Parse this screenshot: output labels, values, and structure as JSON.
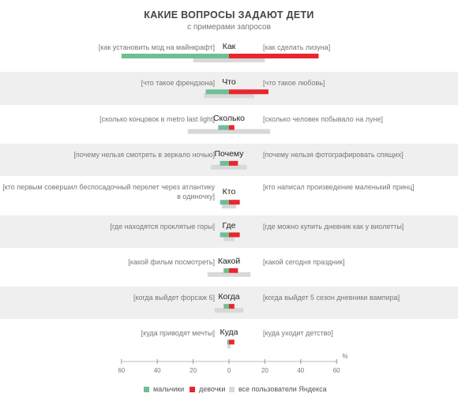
{
  "title": "КАКИЕ ВОПРОСЫ ЗАДАЮТ ДЕТИ",
  "subtitle": "с примерами запросов",
  "colors": {
    "boys": "#6dbf94",
    "girls": "#e8262e",
    "all": "#d8d8d8",
    "band": "#efefef"
  },
  "chart_data": {
    "type": "bar",
    "xlim": [
      -60,
      60
    ],
    "x_ticks": [
      "60",
      "40",
      "20",
      "0",
      "20",
      "40",
      "60"
    ],
    "x_unit": "%",
    "series": [
      {
        "name": "мальчики",
        "key": "boys"
      },
      {
        "name": "девочки",
        "key": "girls"
      },
      {
        "name": "все пользователи Яндекса",
        "key": "all"
      }
    ],
    "rows": [
      {
        "word": "Как",
        "boys": 60,
        "girls": 50,
        "all_left": 20,
        "all_right": 20,
        "boys_query": "[как установить мод на майнкрафт]",
        "girls_query": "[как сделать лизуна]"
      },
      {
        "word": "Что",
        "boys": 13,
        "girls": 22,
        "all_left": 14,
        "all_right": 14,
        "boys_query": "[что такое френдзона]",
        "girls_query": "[что такое любовь]"
      },
      {
        "word": "Сколько",
        "boys": 6,
        "girls": 3,
        "all_left": 23,
        "all_right": 23,
        "boys_query": "[сколько концовок в metro last light]",
        "girls_query": "[сколько человек побывало на луне]"
      },
      {
        "word": "Почему",
        "boys": 5,
        "girls": 5,
        "all_left": 10,
        "all_right": 10,
        "boys_query": "[почему нельзя смотреть в зеркало ночью]",
        "girls_query": "[почему нельзя фотографировать спящих]"
      },
      {
        "word": "Кто",
        "boys": 5,
        "girls": 6,
        "all_left": 4,
        "all_right": 4,
        "boys_query": "[кто первым совершил беспосадочный перелет через атлантику в одиночку]",
        "girls_query": "[кто написал произведение маленький принц]"
      },
      {
        "word": "Где",
        "boys": 5,
        "girls": 6,
        "all_left": 3,
        "all_right": 3,
        "boys_query": "[где находятся проклятые горы]",
        "girls_query": "[где можно купить дневник как у виолетты]"
      },
      {
        "word": "Какой",
        "boys": 3,
        "girls": 5,
        "all_left": 12,
        "all_right": 12,
        "boys_query": "[какой фильм посмотреть]",
        "girls_query": "[какой сегодня праздник]"
      },
      {
        "word": "Когда",
        "boys": 3,
        "girls": 3,
        "all_left": 8,
        "all_right": 8,
        "boys_query": "[когда выйдет форсаж 6]",
        "girls_query": "[когда выйдет 5 сезон дневники вампира]"
      },
      {
        "word": "Куда",
        "boys": 1,
        "girls": 3,
        "all_left": 1,
        "all_right": 1,
        "boys_query": "[куда приводят мечты]",
        "girls_query": "[куда уходит детство]"
      }
    ]
  }
}
